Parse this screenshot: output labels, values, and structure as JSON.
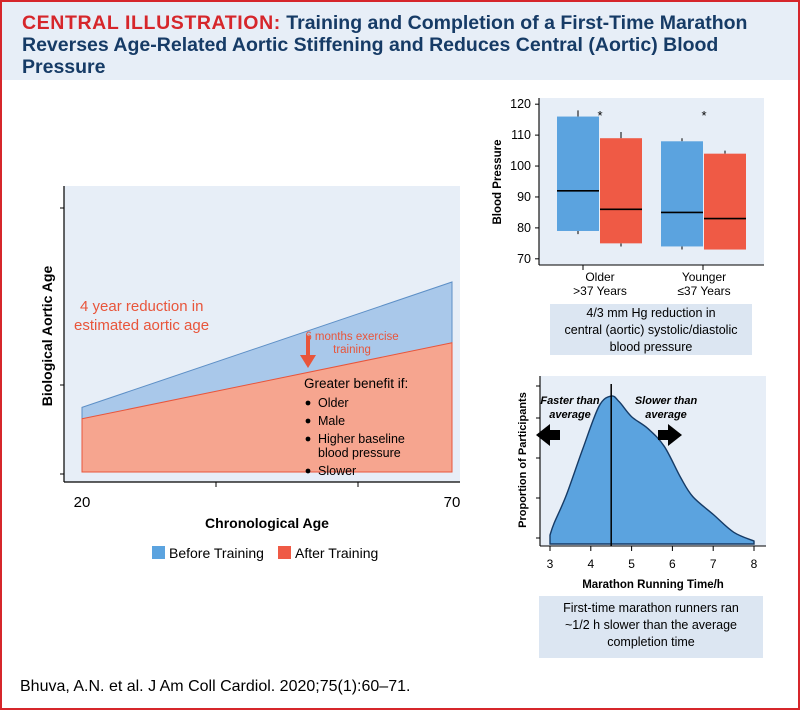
{
  "header": {
    "title_lead": "CENTRAL ILLUSTRATION:",
    "title_rest": "Training and Completion of a First-Time Marathon Reverses Age-Related Aortic Stiffening and Reduces Central (Aortic) Blood Pressure"
  },
  "citation": "Bhuva, A.N. et al. J Am Coll Cardiol. 2020;75(1):60–71.",
  "colors": {
    "before": "#a9c8ea",
    "after": "#f6a58f",
    "box_blue": "#5ba3df",
    "box_red": "#ef5a45",
    "red_text": "#e8553b",
    "accent_red": "#d6262b",
    "navy": "#163b66"
  },
  "chart_data": [
    {
      "type": "area",
      "xlabel": "Chronological Age",
      "ylabel": "Biological Aortic Age",
      "x_ticks": [
        "20",
        "70"
      ],
      "xlim": [
        20,
        70
      ],
      "series": [
        {
          "name": "Before Training",
          "x": [
            20,
            70
          ],
          "y": [
            0.34,
            1.0
          ]
        },
        {
          "name": "After Training",
          "x": [
            20,
            70
          ],
          "y": [
            0.28,
            0.68
          ]
        }
      ],
      "annotations": {
        "reduction": "4 year reduction in estimated aortic age",
        "exercise_line1": "6 months exercise",
        "exercise_line2": "training",
        "benefit_title": "Greater benefit if:",
        "benefit_items": [
          "Older",
          "Male",
          "Higher baseline",
          "blood pressure",
          "Slower"
        ]
      },
      "legend_placement": "bottom"
    },
    {
      "type": "box",
      "ylabel": "Blood Pressure",
      "ylim": [
        68,
        122
      ],
      "y_ticks": [
        "120",
        "110",
        "100",
        "90",
        "80",
        "70"
      ],
      "groups": [
        {
          "label_line1": "Older",
          "label_line2": ">37 Years",
          "significance": "*"
        },
        {
          "label_line1": "Younger",
          "label_line2": "≤37 Years",
          "significance": "*"
        }
      ],
      "boxes": [
        {
          "group": 0,
          "series": "Before Training",
          "whisker_low": 78,
          "q1": 79,
          "median": 92,
          "q3": 116,
          "whisker_high": 118
        },
        {
          "group": 0,
          "series": "After Training",
          "whisker_low": 74,
          "q1": 75,
          "median": 86,
          "q3": 109,
          "whisker_high": 111
        },
        {
          "group": 1,
          "series": "Before Training",
          "whisker_low": 73,
          "q1": 74,
          "median": 85,
          "q3": 108,
          "whisker_high": 109
        },
        {
          "group": 1,
          "series": "After Training",
          "whisker_low": 73,
          "q1": 73,
          "median": 83,
          "q3": 104,
          "whisker_high": 105
        }
      ],
      "caption": [
        "4/3 mm Hg reduction in",
        "central (aortic) systolic/diastolic",
        "blood pressure"
      ]
    },
    {
      "type": "area",
      "xlabel": "Marathon Running Time/h",
      "ylabel": "Proportion of Participants",
      "xlim": [
        3,
        8
      ],
      "x_ticks": [
        "3",
        "4",
        "5",
        "6",
        "7",
        "8"
      ],
      "x": [
        3.0,
        3.1,
        3.4,
        3.8,
        4.2,
        4.5,
        4.7,
        5.0,
        5.4,
        5.8,
        6.2,
        6.5,
        7.0,
        7.5,
        8.0
      ],
      "y": [
        0.06,
        0.14,
        0.33,
        0.64,
        0.93,
        1.0,
        0.96,
        0.86,
        0.78,
        0.66,
        0.45,
        0.32,
        0.2,
        0.08,
        0.02
      ],
      "average_line_x": 4.5,
      "labels": {
        "faster_line1": "Faster than",
        "faster_line2": "average",
        "slower_line1": "Slower than",
        "slower_line2": "average"
      },
      "caption": [
        "First-time marathon runners ran",
        "~1/2 h slower than the average",
        "completion time"
      ]
    }
  ]
}
